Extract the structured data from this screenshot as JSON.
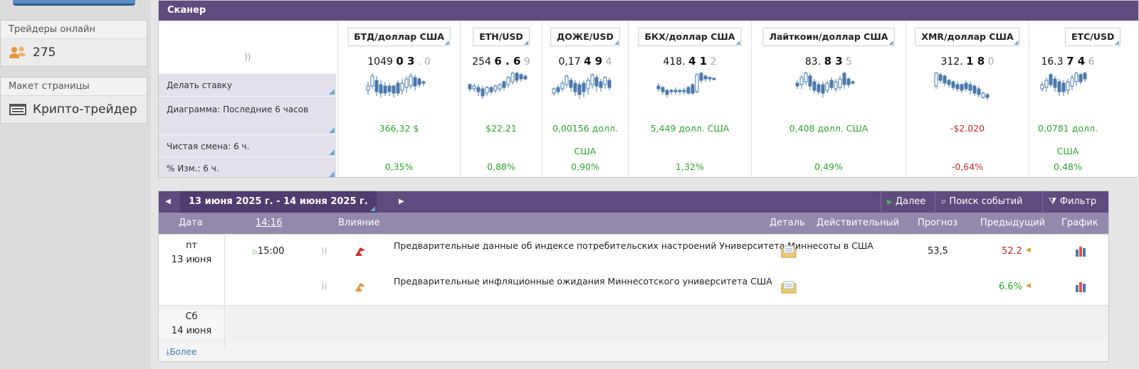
{
  "sidebar": {
    "traders_online_title": "Трейдеры онлайн",
    "traders_online_count": "275",
    "layout_title": "Макет страницы",
    "layout_value": "Крипто-трейдер"
  },
  "scanner": {
    "title": "Сканер",
    "row_labels": {
      "bet": "Делать ставку",
      "chart": "Диаграмма: Последние 6 часов",
      "net": "Чистая смена: 6 ч.",
      "pct": "% Изм.: 6 ч."
    },
    "columns": [
      {
        "pair": "БТД/доллар США",
        "price_main": "1049",
        "price_bold": "0 3",
        "price_sep": " . ",
        "price_dim": "0",
        "change": "366,32 $",
        "pct": "0,35%",
        "dir": "up"
      },
      {
        "pair": "ETH/USD",
        "price_main": "254",
        "price_bold": "6 . 6",
        "price_sep": " ",
        "price_dim": "9",
        "change": "$22.21",
        "pct": "0,88%",
        "dir": "up"
      },
      {
        "pair": "ДОЖЕ/USD",
        "price_main": "0,17",
        "price_bold": "4 9",
        "price_sep": " ",
        "price_dim": "4",
        "change": "0,00156 долл. США",
        "pct": "0,90%",
        "dir": "up"
      },
      {
        "pair": "БКХ/доллар США",
        "price_main": "418.",
        "price_bold": "4 1",
        "price_sep": " ",
        "price_dim": "2",
        "change": "5,449 долл. США",
        "pct": "1,32%",
        "dir": "up"
      },
      {
        "pair": "Лайткоин/доллар США",
        "price_main": "83.",
        "price_bold": "8 3",
        "price_sep": " ",
        "price_dim": "5",
        "change": "0,408 долл. США",
        "pct": "0,49%",
        "dir": "up"
      },
      {
        "pair": "XMR/доллар США",
        "price_main": "312.",
        "price_bold": "1 8",
        "price_sep": " ",
        "price_dim": "0",
        "change": "-$2.020",
        "pct": "-0,64%",
        "dir": "down"
      },
      {
        "pair": "ETC/USD",
        "price_main": "16.3",
        "price_bold": "7 4",
        "price_sep": " ",
        "price_dim": "6",
        "change": "0,0781 долл. США",
        "pct": "0,48%",
        "dir": "up"
      }
    ]
  },
  "calendar": {
    "range": "13 июня 2025 г. - 14 июня 2025 г.",
    "next": "Далее",
    "search": "Поиск событий",
    "filter": "Фильтр",
    "cols": {
      "date": "Дата",
      "time": "14:16",
      "impact": "Влияние",
      "detail": "Деталь",
      "actual": "Действительный",
      "forecast": "Прогноз",
      "previous": "Предыдущий",
      "graph": "График"
    },
    "day1": {
      "name": "пт",
      "date": "13 июня"
    },
    "day2": {
      "name": "Сб",
      "date": "14 июня"
    },
    "events": [
      {
        "time": "15:00",
        "title": "Предварительные данные об индексе потребительских настроений Университета Миннесоты в США",
        "forecast": "53,5",
        "previous": "52.2",
        "previous_color": "#c62828"
      },
      {
        "time": "",
        "title": "Предварительные инфляционные ожидания Миннесотского университета США",
        "forecast": "",
        "previous": "6.6%",
        "previous_color": "#2aa52a"
      }
    ],
    "more": "Более"
  },
  "colors": {
    "header": "#5e4c7e",
    "up": "#2aa52a",
    "down": "#c62828",
    "candle": "#4a79ad"
  }
}
